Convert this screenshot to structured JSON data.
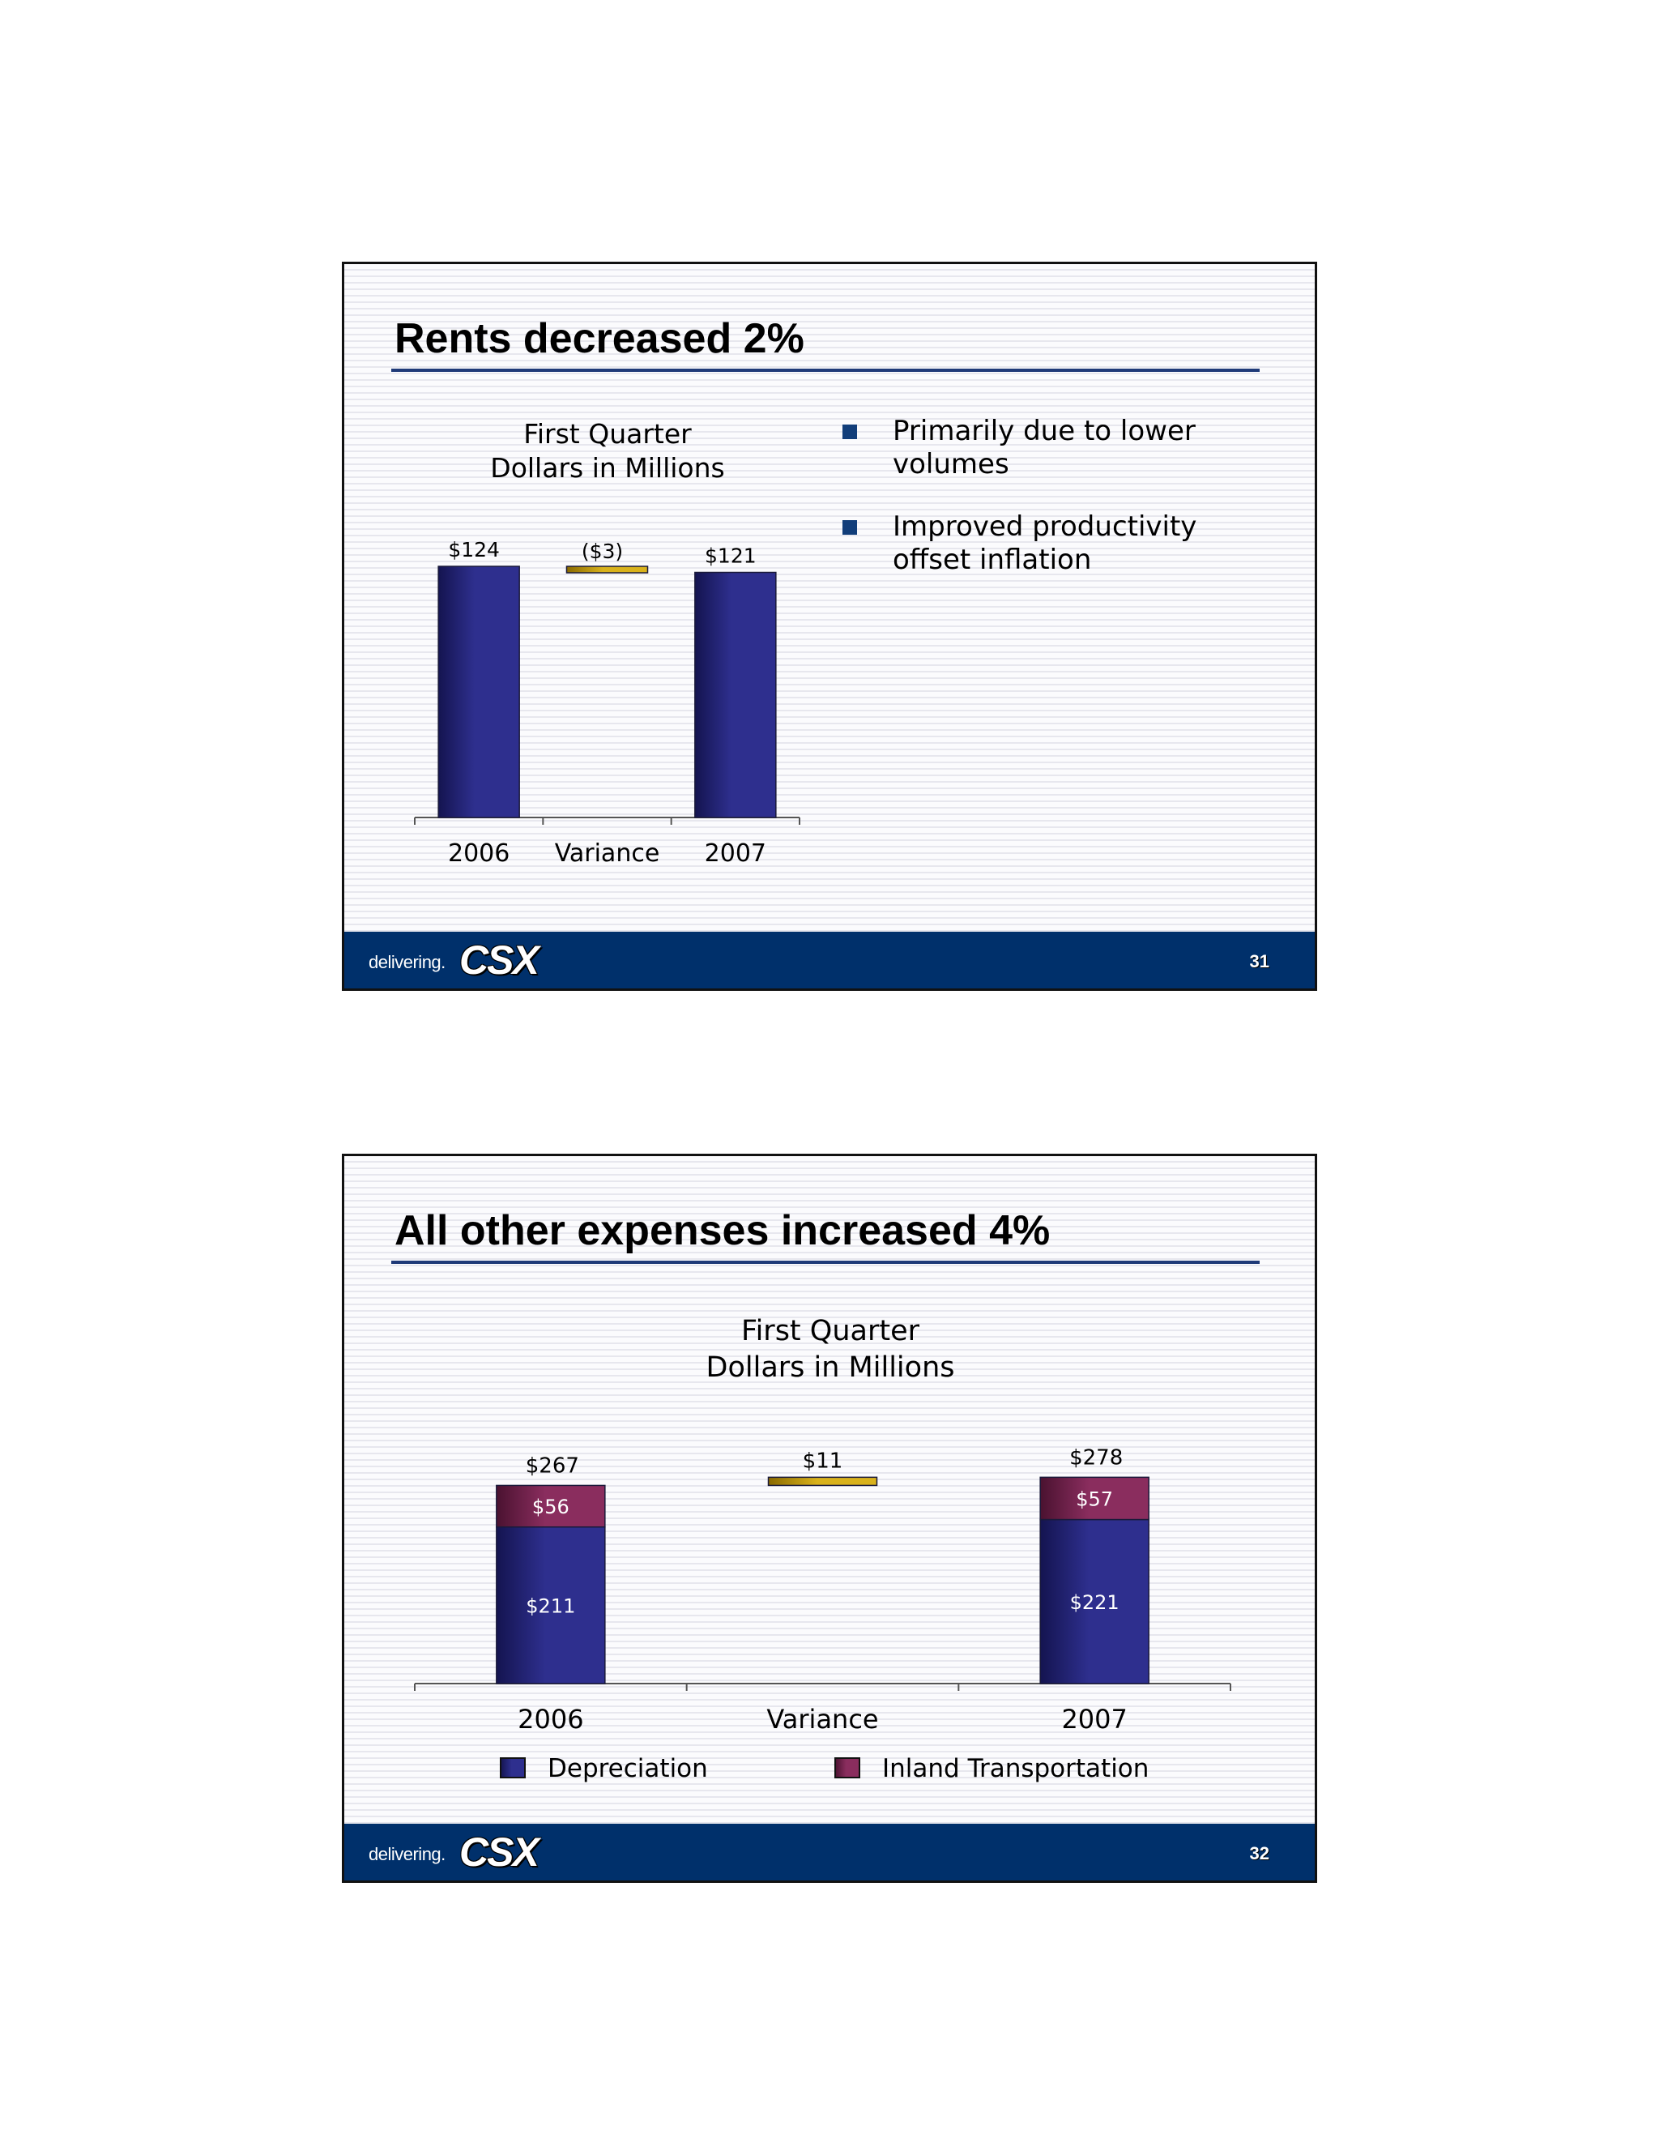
{
  "slides": [
    {
      "title": "Rents decreased 2%",
      "chart_heading": [
        "First Quarter",
        "Dollars in Millions"
      ],
      "bullets": [
        "Primarily due to lower volumes",
        "Improved productivity offset inflation"
      ],
      "footer": {
        "tagline": "delivering.",
        "logo": "CSX",
        "page_number": "31"
      }
    },
    {
      "title": "All other expenses increased 4%",
      "chart_heading": [
        "First Quarter",
        "Dollars in Millions"
      ],
      "footer": {
        "tagline": "delivering.",
        "logo": "CSX",
        "page_number": "32"
      }
    }
  ],
  "colors": {
    "bar_blue": "#2e2f8e",
    "bar_maroon": "#8a2d5e",
    "variance_gold": "#d9b21c",
    "footer_navy": "#00306b",
    "title_rule": "#1f3a78"
  },
  "chart_data": [
    {
      "type": "bar",
      "subtype": "waterfall",
      "categories": [
        "2006",
        "Variance",
        "2007"
      ],
      "values": [
        124,
        -3,
        121
      ],
      "data_labels": [
        "$124",
        "($3)",
        "$121"
      ],
      "title": "First Quarter\nDollars in Millions",
      "ylim": [
        0,
        124
      ],
      "grid": false
    },
    {
      "type": "bar",
      "subtype": "stacked-waterfall",
      "categories": [
        "2006",
        "Variance",
        "2007"
      ],
      "series": [
        {
          "name": "Depreciation",
          "values": [
            211,
            null,
            221
          ],
          "labels": [
            "$211",
            "",
            "$221"
          ]
        },
        {
          "name": "Inland Transportation",
          "values": [
            56,
            null,
            57
          ],
          "labels": [
            "$56",
            "",
            "$57"
          ]
        }
      ],
      "variance": 11,
      "variance_label": "$11",
      "totals": [
        267,
        null,
        278
      ],
      "total_labels": [
        "$267",
        "",
        "$278"
      ],
      "title": "First Quarter\nDollars in Millions",
      "legend_position": "bottom",
      "grid": false
    }
  ]
}
